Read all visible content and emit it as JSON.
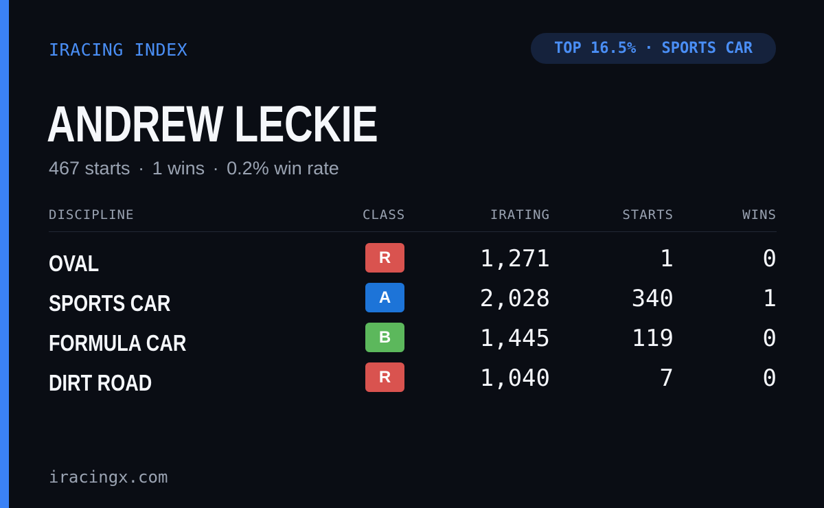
{
  "brand": "IRACING INDEX",
  "rank": {
    "top": "TOP 16.5%",
    "separator": "·",
    "category": "SPORTS CAR"
  },
  "driver": {
    "name": "ANDREW LECKIE",
    "starts": "467 starts",
    "wins": "1 wins",
    "win_rate": "0.2% win rate",
    "separator": "·"
  },
  "table": {
    "headers": {
      "discipline": "DISCIPLINE",
      "class": "CLASS",
      "irating": "IRATING",
      "starts": "STARTS",
      "wins": "WINS"
    },
    "rows": [
      {
        "discipline": "OVAL",
        "class": "R",
        "class_color": "#d9534f",
        "irating": "1,271",
        "starts": "1",
        "wins": "0"
      },
      {
        "discipline": "SPORTS CAR",
        "class": "A",
        "class_color": "#1d74d8",
        "irating": "2,028",
        "starts": "340",
        "wins": "1"
      },
      {
        "discipline": "FORMULA CAR",
        "class": "B",
        "class_color": "#5cb85c",
        "irating": "1,445",
        "starts": "119",
        "wins": "0"
      },
      {
        "discipline": "DIRT ROAD",
        "class": "R",
        "class_color": "#d9534f",
        "irating": "1,040",
        "starts": "7",
        "wins": "0"
      }
    ]
  },
  "footer": "iracingx.com",
  "colors": {
    "background": "#0a0d14",
    "accent": "#3b82f6",
    "muted": "#9aa3b2",
    "pill_bg": "#15223c"
  }
}
